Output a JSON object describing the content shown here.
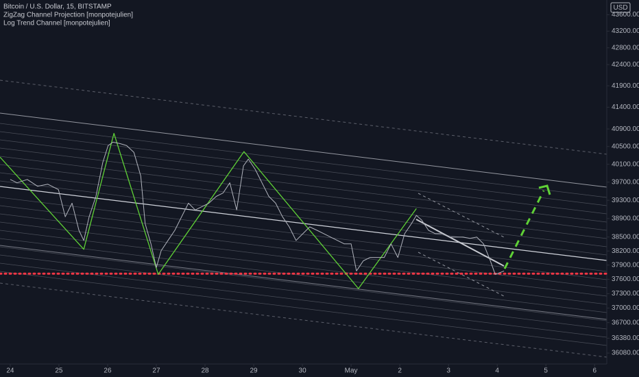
{
  "chart_data": {
    "type": "line",
    "log_scale": true,
    "annotations": [
      "Log Trend Channel [monpotejulien]"
    ],
    "y_axis_unit": "USD",
    "xlim": [
      -0.21,
      12.25
    ],
    "xticks": [
      {
        "value": 0,
        "label": "24"
      },
      {
        "value": 1,
        "label": "25"
      },
      {
        "value": 2,
        "label": "26"
      },
      {
        "value": 3,
        "label": "27"
      },
      {
        "value": 4,
        "label": "28"
      },
      {
        "value": 5,
        "label": "29"
      },
      {
        "value": 6,
        "label": "30"
      },
      {
        "value": 7,
        "label": "May"
      },
      {
        "value": 8,
        "label": "2"
      },
      {
        "value": 9,
        "label": "3"
      },
      {
        "value": 10,
        "label": "4"
      },
      {
        "value": 11,
        "label": "5"
      },
      {
        "value": 12,
        "label": "6"
      }
    ],
    "ylim": [
      35860,
      43960
    ],
    "yticks": [
      {
        "value": 43600,
        "label": "43600.00"
      },
      {
        "value": 43200,
        "label": "43200.00"
      },
      {
        "value": 42800,
        "label": "42800.00"
      },
      {
        "value": 42400,
        "label": "42400.00"
      },
      {
        "value": 41900,
        "label": "41900.00"
      },
      {
        "value": 41400,
        "label": "41400.00"
      },
      {
        "value": 40900,
        "label": "40900.00"
      },
      {
        "value": 40500,
        "label": "40500.00"
      },
      {
        "value": 40100,
        "label": "40100.00"
      },
      {
        "value": 39700,
        "label": "39700.00"
      },
      {
        "value": 39300,
        "label": "39300.00"
      },
      {
        "value": 38900,
        "label": "38900.00"
      },
      {
        "value": 38500,
        "label": "38500.00"
      },
      {
        "value": 38200,
        "label": "38200.00"
      },
      {
        "value": 37900,
        "label": "37900.00"
      },
      {
        "value": 37600,
        "label": "37600.00"
      },
      {
        "value": 37300,
        "label": "37300.00"
      },
      {
        "value": 37000,
        "label": "37000.00"
      },
      {
        "value": 36700,
        "label": "36700.00"
      },
      {
        "value": 36380,
        "label": "36380.00"
      },
      {
        "value": 36080,
        "label": "36080.00"
      }
    ],
    "horizontal_line": {
      "value": 37718,
      "color": "#f23645"
    },
    "series": [
      {
        "name": "Bitcoin / U.S. Dollar, 15, BITSTAMP",
        "color": "#b2b5be",
        "x": [
          0,
          0.14,
          0.35,
          0.56,
          0.77,
          0.99,
          1.13,
          1.27,
          1.41,
          1.51,
          1.62,
          1.76,
          1.9,
          2.01,
          2.11,
          2.25,
          2.39,
          2.54,
          2.68,
          2.77,
          2.89,
          3,
          3.1,
          3.24,
          3.38,
          3.52,
          3.66,
          3.8,
          3.94,
          4.08,
          4.23,
          4.37,
          4.51,
          4.65,
          4.79,
          4.89,
          5.03,
          5.17,
          5.31,
          5.45,
          5.59,
          5.73,
          5.87,
          6.01,
          6.15,
          6.3,
          6.44,
          6.58,
          6.72,
          6.86,
          7,
          7.11,
          7.25,
          7.39,
          7.54,
          7.68,
          7.82,
          7.96,
          8.1,
          8.24,
          8.34,
          8.45,
          8.59,
          8.73,
          8.87,
          9.01,
          9.15,
          9.3,
          9.44,
          9.58,
          9.72,
          9.86,
          9.96,
          10.07,
          10.14
        ],
        "values": [
          39761,
          39685,
          39761,
          39610,
          39655,
          39535,
          38940,
          39236,
          38645,
          38426,
          38940,
          39385,
          40140,
          40521,
          40599,
          40568,
          40521,
          40368,
          39836,
          38792,
          38353,
          37847,
          38208,
          38426,
          38645,
          38940,
          39236,
          39087,
          39162,
          39236,
          39385,
          39460,
          39685,
          39087,
          40063,
          40216,
          39987,
          39685,
          39385,
          39236,
          38940,
          38719,
          38426,
          38572,
          38719,
          38645,
          38572,
          38499,
          38426,
          38353,
          38353,
          37776,
          37991,
          38063,
          38063,
          38063,
          38353,
          38063,
          38572,
          38792,
          38969,
          38866,
          38645,
          38572,
          38572,
          38499,
          38499,
          38499,
          38470,
          38499,
          38353,
          37991,
          37704,
          37747,
          37776
        ]
      },
      {
        "name": "ZigZag Channel Projection [monpotejulien]",
        "color": "#5fd136",
        "x": [
          -0.21,
          1.51,
          2.13,
          3.04,
          4.8,
          7.15,
          8.34
        ],
        "values": [
          40261,
          38237,
          40799,
          37704,
          40384,
          37405,
          39117
        ]
      }
    ]
  }
}
